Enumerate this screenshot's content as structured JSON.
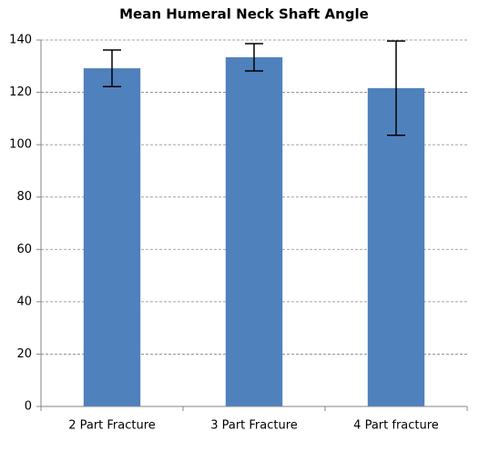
{
  "chart_data": {
    "type": "bar",
    "title": "Mean Humeral Neck Shaft Angle",
    "categories": [
      "2 Part Fracture",
      "3 Part Fracture",
      "4 Part fracture"
    ],
    "values": [
      129.2,
      133.4,
      121.6
    ],
    "errors": [
      7,
      5.2,
      18
    ],
    "color": "#4f81bd",
    "ylim": [
      0,
      140
    ],
    "yticks": [
      0,
      20,
      40,
      60,
      80,
      100,
      120,
      140
    ],
    "grid": true
  }
}
